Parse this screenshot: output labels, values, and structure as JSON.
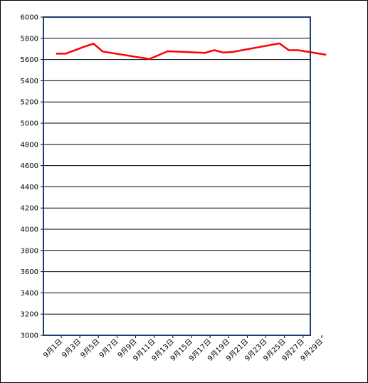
{
  "chart_data": {
    "type": "line",
    "title": "",
    "xlabel": "",
    "ylabel": "",
    "ylim": [
      3000,
      6000
    ],
    "ystep": 200,
    "grid": true,
    "legend": "none",
    "x_tick_labels": [
      "9月1日",
      "9月3日",
      "9月5日",
      "9月7日",
      "9月9日",
      "9月11日",
      "9月13日",
      "9月15日",
      "9月17日",
      "9月19日",
      "9月21日",
      "9月23日",
      "9月25日",
      "9月27日",
      "9月29日"
    ],
    "series": [
      {
        "color": "#ff0000",
        "points": [
          {
            "x": "9月1日",
            "y": 5655
          },
          {
            "x": "9月2日",
            "y": 5655
          },
          {
            "x": "9月4日",
            "y": 5720
          },
          {
            "x": "9月5日",
            "y": 5750
          },
          {
            "x": "9月6日",
            "y": 5675
          },
          {
            "x": "9月11日",
            "y": 5605
          },
          {
            "x": "9月13日",
            "y": 5678
          },
          {
            "x": "9月17日",
            "y": 5663
          },
          {
            "x": "9月18日",
            "y": 5688
          },
          {
            "x": "9月19日",
            "y": 5665
          },
          {
            "x": "9月20日",
            "y": 5672
          },
          {
            "x": "9月25日",
            "y": 5752
          },
          {
            "x": "9月26日",
            "y": 5688
          },
          {
            "x": "9月27日",
            "y": 5688
          },
          {
            "x": "9月30日",
            "y": 5645
          }
        ]
      }
    ],
    "colors": {
      "plot_border": "#1f3a6e",
      "grid": "#000000",
      "line": "#ff0000"
    }
  }
}
